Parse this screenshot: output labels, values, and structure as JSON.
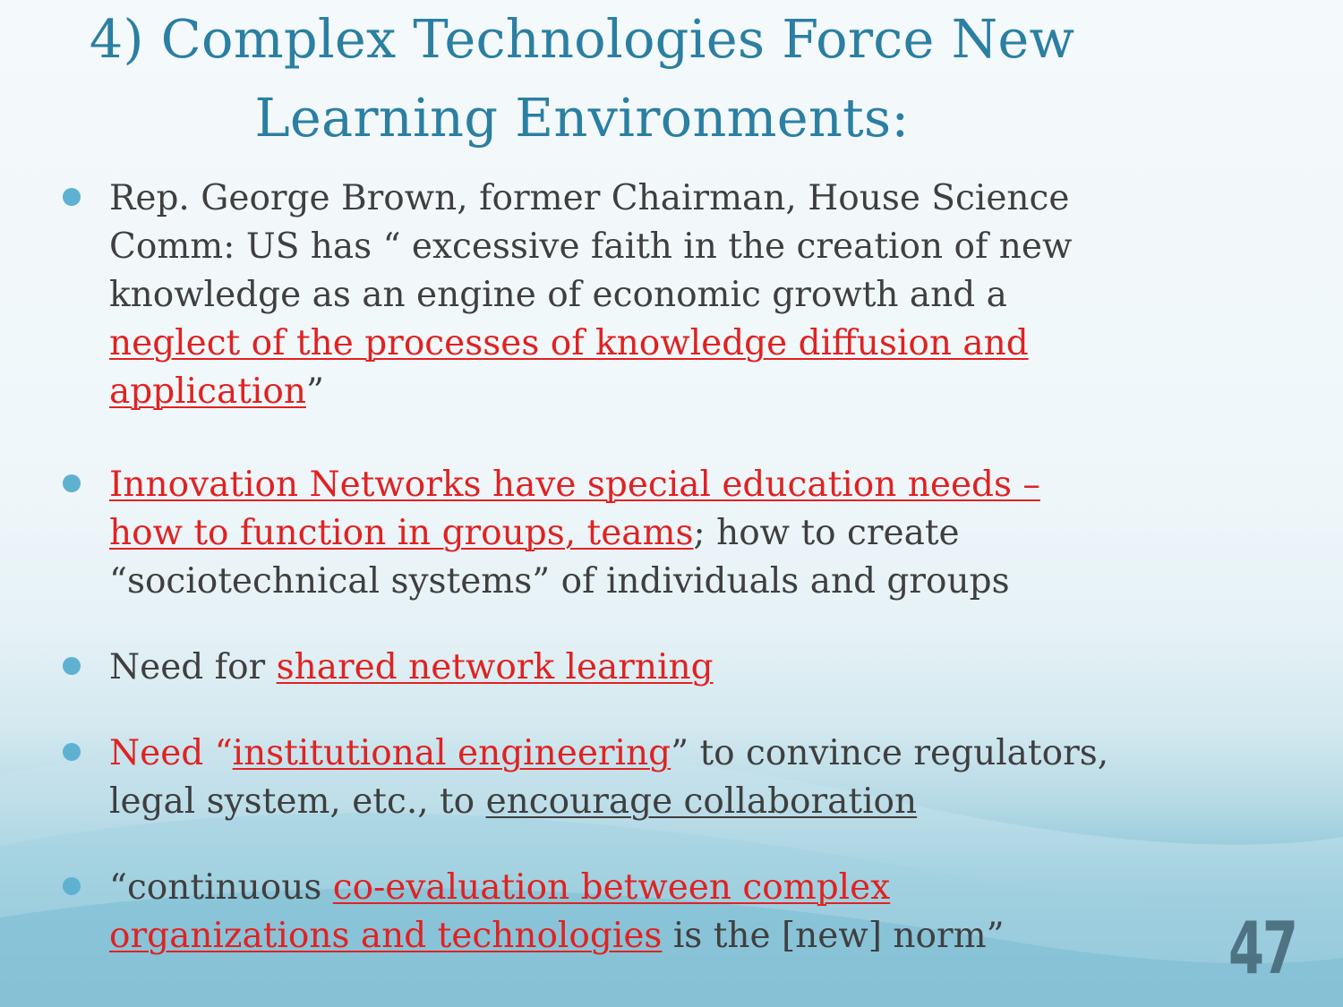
{
  "slide": {
    "title_line1": "4) Complex Technologies Force New",
    "title_line2": "Learning Environments:",
    "page_number": "47",
    "accent_color": "#2a7fa2",
    "bullet_color": "#5fb1d2",
    "highlight_color": "#e02222"
  },
  "bullets": [
    {
      "p1": "Rep. George Brown, former Chairman, House Science Comm: US has “ excessive faith in the creation of new knowledge as an engine of economic growth and a ",
      "p2_link": "neglect of the processes of knowledge diffusion and application",
      "p3": "”"
    },
    {
      "p1_link": "Innovation Networks have special education needs – how to function in groups, teams",
      "p2": "; how to create “sociotechnical systems” of individuals and groups"
    },
    {
      "p1": "Need for ",
      "p2_link": "shared network learning"
    },
    {
      "p1_red": "Need “",
      "p2_link": "institutional engineering",
      "p3": "” to convince regulators, legal system, etc., to ",
      "p4_link": "encourage collaboration"
    },
    {
      "p1": "“continuous ",
      "p2_link": "co-evaluation between complex organizations and technologies",
      "p3": " is the [new] norm”"
    }
  ]
}
